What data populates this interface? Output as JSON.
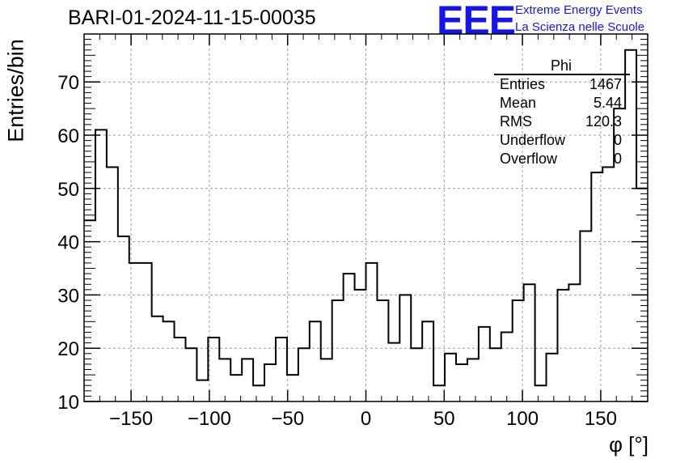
{
  "chart_data": {
    "type": "histogram",
    "title": "BARI-01-2024-11-15-00035",
    "xlabel": "φ [°]",
    "ylabel": "Entries/bin",
    "xlim": [
      -180,
      180
    ],
    "ylim": [
      10,
      79
    ],
    "bin_width": 7.2,
    "xticks": [
      -150,
      -100,
      -50,
      0,
      50,
      100,
      150
    ],
    "xtick_labels": [
      "−150",
      "−100",
      "−50",
      "0",
      "50",
      "100",
      "150"
    ],
    "yticks": [
      10,
      20,
      30,
      40,
      50,
      60,
      70
    ],
    "ytick_labels": [
      "10",
      "20",
      "30",
      "40",
      "50",
      "60",
      "70"
    ],
    "grid": true,
    "values": [
      44,
      61,
      54,
      41,
      36,
      36,
      26,
      25,
      22,
      20,
      14,
      22,
      18,
      15,
      18,
      13,
      17,
      22,
      15,
      20,
      25,
      18,
      29,
      34,
      31,
      36,
      29,
      21,
      30,
      20,
      25,
      13,
      19,
      17,
      18,
      24,
      20,
      23,
      29,
      32,
      13,
      19,
      31,
      32,
      42,
      53,
      54,
      65,
      76,
      50
    ],
    "stats": {
      "name": "Phi",
      "rows": [
        {
          "label": "Entries",
          "value": "1467"
        },
        {
          "label": "Mean",
          "value": "5.44"
        },
        {
          "label": "RMS",
          "value": "120.3"
        },
        {
          "label": "Underflow",
          "value": "0"
        },
        {
          "label": "Overflow",
          "value": "0"
        }
      ]
    }
  },
  "branding": {
    "logo": "EEE",
    "line1": "Extreme Energy Events",
    "line2": "La Scienza nelle Scuole",
    "color": "#1414ee"
  }
}
